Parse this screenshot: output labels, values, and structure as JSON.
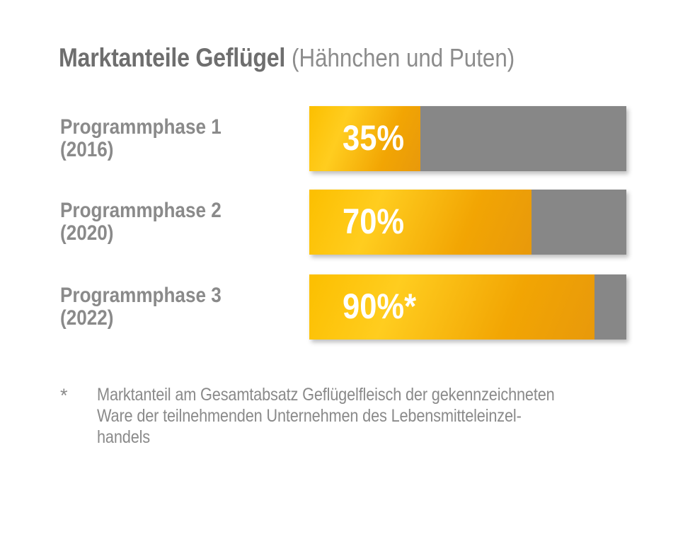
{
  "title": {
    "main": "Marktanteile Geflügel",
    "sub": "(Hähnchen und Puten)"
  },
  "chart_data": {
    "type": "bar",
    "orientation": "horizontal",
    "title": "Marktanteile Geflügel (Hähnchen und Puten)",
    "categories": [
      "Programmphase 1 (2016)",
      "Programmphase 2 (2020)",
      "Programmphase 3 (2022)"
    ],
    "values": [
      35,
      70,
      90
    ],
    "value_labels": [
      "35%",
      "70%",
      "90%*"
    ],
    "xlim": [
      0,
      100
    ],
    "grid": false,
    "legend": "none",
    "bar_color_fill": "#f5ae00",
    "bar_color_remainder": "#878787"
  },
  "rows": [
    {
      "label_line1": "Programmphase 1",
      "label_line2": "(2016)",
      "value": 35,
      "value_label": "35%"
    },
    {
      "label_line1": "Programmphase 2",
      "label_line2": "(2020)",
      "value": 70,
      "value_label": "70%"
    },
    {
      "label_line1": "Programmphase 3",
      "label_line2": "(2022)",
      "value": 90,
      "value_label": "90%*"
    }
  ],
  "footnote": {
    "marker": "*",
    "lines": [
      "Marktanteil am Gesamtabsatz Geflügelfleisch der gekennzeichneten",
      "Ware der teilnehmenden Unternehmen des Lebensmitteleinzel-",
      "handels"
    ],
    "full_text": "Marktanteil am Gesamtabsatz Geflügelfleisch der gekennzeichneten Ware der teilnehmenden Unternehmen des Lebensmitteleinzelhandels"
  },
  "colors": {
    "background": "#ffffff",
    "title_main": "#6e6e6e",
    "title_sub": "#8c8c8c",
    "label_text": "#8a8a8a",
    "footnote_text": "#8a8a8a",
    "bar_remainder_gray": "#878787",
    "bar_yellow_light": "#ffcd1f",
    "bar_yellow_dark": "#e8990b",
    "value_text": "#ffffff"
  }
}
